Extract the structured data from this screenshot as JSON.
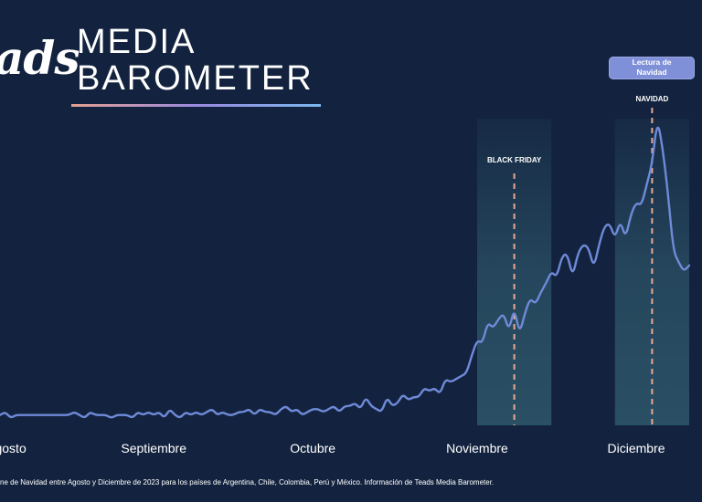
{
  "header": {
    "logo_text": "ads",
    "title_line1": "MEDIA",
    "title_line2": "BAROMETER"
  },
  "badge": {
    "line1": "Lectura de",
    "line2": "Navidad"
  },
  "footnote": "ne de Navidad entre Agosto y Diciembre de 2023 para los países de Argentina, Chile, Colombia, Perú y México. Información de Teads Media Barometer.",
  "colors": {
    "background": "#13233f",
    "line": "#6f8ad8",
    "highlight_band": "#2b5266",
    "marker": "#e8a890",
    "badge": "#7f8fd8"
  },
  "chart_data": {
    "type": "line",
    "title": "",
    "xlabel": "",
    "ylabel": "",
    "months": [
      "gosto",
      "Septiembre",
      "Octubre",
      "Noviembre",
      "Diciembre"
    ],
    "month_day_index": [
      2,
      29,
      59,
      90,
      120
    ],
    "x_range": [
      0,
      130
    ],
    "y_range": [
      0,
      100
    ],
    "grid": false,
    "annotations": [
      {
        "label": "BLACK FRIDAY",
        "day": 97,
        "band": [
          90,
          104
        ]
      },
      {
        "label": "NAVIDAD",
        "day": 123,
        "band": [
          116,
          130
        ]
      }
    ],
    "series": [
      {
        "values": [
          1,
          2,
          0,
          1,
          1,
          1,
          1,
          1,
          1,
          1,
          1,
          1,
          1,
          1,
          2,
          1,
          0,
          2,
          1,
          1,
          1,
          0,
          1,
          1,
          1,
          0,
          2,
          1,
          2,
          1,
          2,
          0,
          3,
          1,
          0,
          2,
          1,
          2,
          1,
          2,
          3,
          1,
          2,
          1,
          1,
          2,
          2,
          3,
          1,
          3,
          2,
          2,
          1,
          3,
          4,
          2,
          3,
          1,
          2,
          3,
          3,
          2,
          3,
          4,
          2,
          4,
          4,
          5,
          3,
          7,
          4,
          3,
          2,
          7,
          4,
          5,
          8,
          6,
          7,
          7,
          10,
          9,
          10,
          8,
          13,
          12,
          13,
          14,
          15,
          21,
          26,
          25,
          32,
          30,
          33,
          35,
          29,
          37,
          28,
          35,
          40,
          38,
          42,
          45,
          49,
          47,
          54,
          55,
          47,
          55,
          58,
          57,
          50,
          58,
          64,
          65,
          60,
          66,
          60,
          68,
          72,
          71,
          78,
          85,
          100,
          90,
          75,
          56,
          52,
          49,
          51
        ]
      }
    ]
  }
}
